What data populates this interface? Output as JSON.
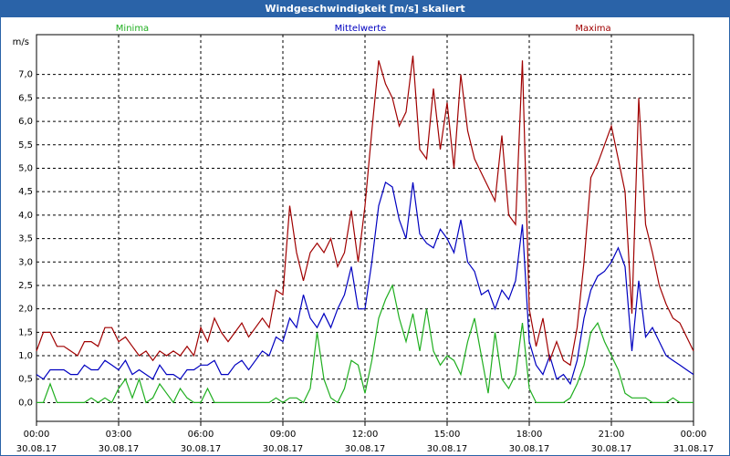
{
  "chart_data": {
    "type": "line",
    "title": "Windgeschwindigkeit [m/s] skaliert",
    "y_label": "m/s",
    "x": [
      0,
      0.25,
      0.5,
      0.75,
      1,
      1.25,
      1.5,
      1.75,
      2,
      2.25,
      2.5,
      2.75,
      3,
      3.25,
      3.5,
      3.75,
      4,
      4.25,
      4.5,
      4.75,
      5,
      5.25,
      5.5,
      5.75,
      6,
      6.25,
      6.5,
      6.75,
      7,
      7.25,
      7.5,
      7.75,
      8,
      8.25,
      8.5,
      8.75,
      9,
      9.25,
      9.5,
      9.75,
      10,
      10.25,
      10.5,
      10.75,
      11,
      11.25,
      11.5,
      11.75,
      12,
      12.25,
      12.5,
      12.75,
      13,
      13.25,
      13.5,
      13.75,
      14,
      14.25,
      14.5,
      14.75,
      15,
      15.25,
      15.5,
      15.75,
      16,
      16.25,
      16.5,
      16.75,
      17,
      17.25,
      17.5,
      17.75,
      18,
      18.25,
      18.5,
      18.75,
      19,
      19.25,
      19.5,
      19.75,
      20,
      20.25,
      20.5,
      20.75,
      21,
      21.25,
      21.5,
      21.75,
      22,
      22.25,
      22.5,
      22.75,
      23,
      23.25,
      23.5,
      23.75,
      24
    ],
    "series": [
      {
        "name": "Minima",
        "color": "#1fae1f",
        "values": [
          0.0,
          0.0,
          0.4,
          0.0,
          0.0,
          0.0,
          0.0,
          0.0,
          0.1,
          0.0,
          0.1,
          0.0,
          0.3,
          0.5,
          0.1,
          0.5,
          0.0,
          0.1,
          0.4,
          0.2,
          0.0,
          0.3,
          0.1,
          0.0,
          0.0,
          0.3,
          0.0,
          0.0,
          0.0,
          0.0,
          0.0,
          0.0,
          0.0,
          0.0,
          0.0,
          0.1,
          0.0,
          0.1,
          0.1,
          0.0,
          0.3,
          1.5,
          0.5,
          0.1,
          0.0,
          0.3,
          0.9,
          0.8,
          0.2,
          0.9,
          1.8,
          2.2,
          2.5,
          1.8,
          1.3,
          1.9,
          1.1,
          2.0,
          1.1,
          0.8,
          1.0,
          0.9,
          0.6,
          1.3,
          1.8,
          1.0,
          0.2,
          1.5,
          0.5,
          0.3,
          0.6,
          1.7,
          0.3,
          0.0,
          0.0,
          0.0,
          0.0,
          0.0,
          0.1,
          0.4,
          0.8,
          1.5,
          1.7,
          1.3,
          1.0,
          0.7,
          0.2,
          0.1,
          0.1,
          0.1,
          0.0,
          0.0,
          0.0,
          0.1,
          0.0,
          0.0,
          0.0
        ]
      },
      {
        "name": "Mittelwerte",
        "color": "#0000c0",
        "values": [
          0.6,
          0.5,
          0.7,
          0.7,
          0.7,
          0.6,
          0.6,
          0.8,
          0.7,
          0.7,
          0.9,
          0.8,
          0.7,
          0.9,
          0.6,
          0.7,
          0.6,
          0.5,
          0.8,
          0.6,
          0.6,
          0.5,
          0.7,
          0.7,
          0.8,
          0.8,
          0.9,
          0.6,
          0.6,
          0.8,
          0.9,
          0.7,
          0.9,
          1.1,
          1.0,
          1.4,
          1.3,
          1.8,
          1.6,
          2.3,
          1.8,
          1.6,
          1.9,
          1.6,
          2.0,
          2.3,
          2.9,
          2.0,
          2.0,
          3.0,
          4.2,
          4.7,
          4.6,
          3.9,
          3.5,
          4.7,
          3.6,
          3.4,
          3.3,
          3.7,
          3.5,
          3.2,
          3.9,
          3.0,
          2.8,
          2.3,
          2.4,
          2.0,
          2.4,
          2.2,
          2.6,
          3.8,
          1.3,
          0.8,
          0.6,
          1.0,
          0.5,
          0.6,
          0.4,
          0.9,
          1.8,
          2.4,
          2.7,
          2.8,
          3.0,
          3.3,
          2.9,
          1.1,
          2.6,
          1.4,
          1.6,
          1.3,
          1.0,
          0.9,
          0.8,
          0.7,
          0.6
        ]
      },
      {
        "name": "Maxima",
        "color": "#a00000",
        "values": [
          1.1,
          1.5,
          1.5,
          1.2,
          1.2,
          1.1,
          1.0,
          1.3,
          1.3,
          1.2,
          1.6,
          1.6,
          1.3,
          1.4,
          1.2,
          1.0,
          1.1,
          0.9,
          1.1,
          1.0,
          1.1,
          1.0,
          1.2,
          1.0,
          1.6,
          1.3,
          1.8,
          1.5,
          1.3,
          1.5,
          1.7,
          1.4,
          1.6,
          1.8,
          1.6,
          2.4,
          2.3,
          4.2,
          3.2,
          2.6,
          3.2,
          3.4,
          3.2,
          3.5,
          2.9,
          3.2,
          4.1,
          3.0,
          4.2,
          5.8,
          7.3,
          6.8,
          6.5,
          5.9,
          6.2,
          7.4,
          5.4,
          5.2,
          6.7,
          5.4,
          6.4,
          5.0,
          7.0,
          5.8,
          5.2,
          4.9,
          4.6,
          4.3,
          5.7,
          4.0,
          3.8,
          7.3,
          2.0,
          1.2,
          1.8,
          0.9,
          1.3,
          0.9,
          0.8,
          1.6,
          3.0,
          4.8,
          5.1,
          5.5,
          5.9,
          5.2,
          4.5,
          1.9,
          6.5,
          3.8,
          3.2,
          2.5,
          2.1,
          1.8,
          1.7,
          1.4,
          1.1
        ]
      }
    ],
    "xlim": [
      0,
      24
    ],
    "xticks": [
      {
        "value": 0,
        "label": "00:00"
      },
      {
        "value": 3,
        "label": "03:00"
      },
      {
        "value": 6,
        "label": "06:00"
      },
      {
        "value": 9,
        "label": "09:00"
      },
      {
        "value": 12,
        "label": "12:00"
      },
      {
        "value": 15,
        "label": "15:00"
      },
      {
        "value": 18,
        "label": "18:00"
      },
      {
        "value": 21,
        "label": "21:00"
      },
      {
        "value": 24,
        "label": "00:00"
      }
    ],
    "xtick_dates": [
      "30.08.17",
      "30.08.17",
      "30.08.17",
      "30.08.17",
      "30.08.17",
      "30.08.17",
      "30.08.17",
      "30.08.17",
      "31.08.17"
    ],
    "ylim": [
      -0.4,
      7.85
    ],
    "yticks": [
      {
        "value": 0,
        "label": "0,0"
      },
      {
        "value": 0.5,
        "label": "0,5"
      },
      {
        "value": 1,
        "label": "1,0"
      },
      {
        "value": 1.5,
        "label": "1,5"
      },
      {
        "value": 2,
        "label": "2,0"
      },
      {
        "value": 2.5,
        "label": "2,5"
      },
      {
        "value": 3,
        "label": "3,0"
      },
      {
        "value": 3.5,
        "label": "3,5"
      },
      {
        "value": 4,
        "label": "4,0"
      },
      {
        "value": 4.5,
        "label": "4,5"
      },
      {
        "value": 5,
        "label": "5,0"
      },
      {
        "value": 5.5,
        "label": "5,5"
      },
      {
        "value": 6,
        "label": "6,0"
      },
      {
        "value": 6.5,
        "label": "6,5"
      },
      {
        "value": 7,
        "label": "7,0"
      }
    ],
    "grid": true
  }
}
